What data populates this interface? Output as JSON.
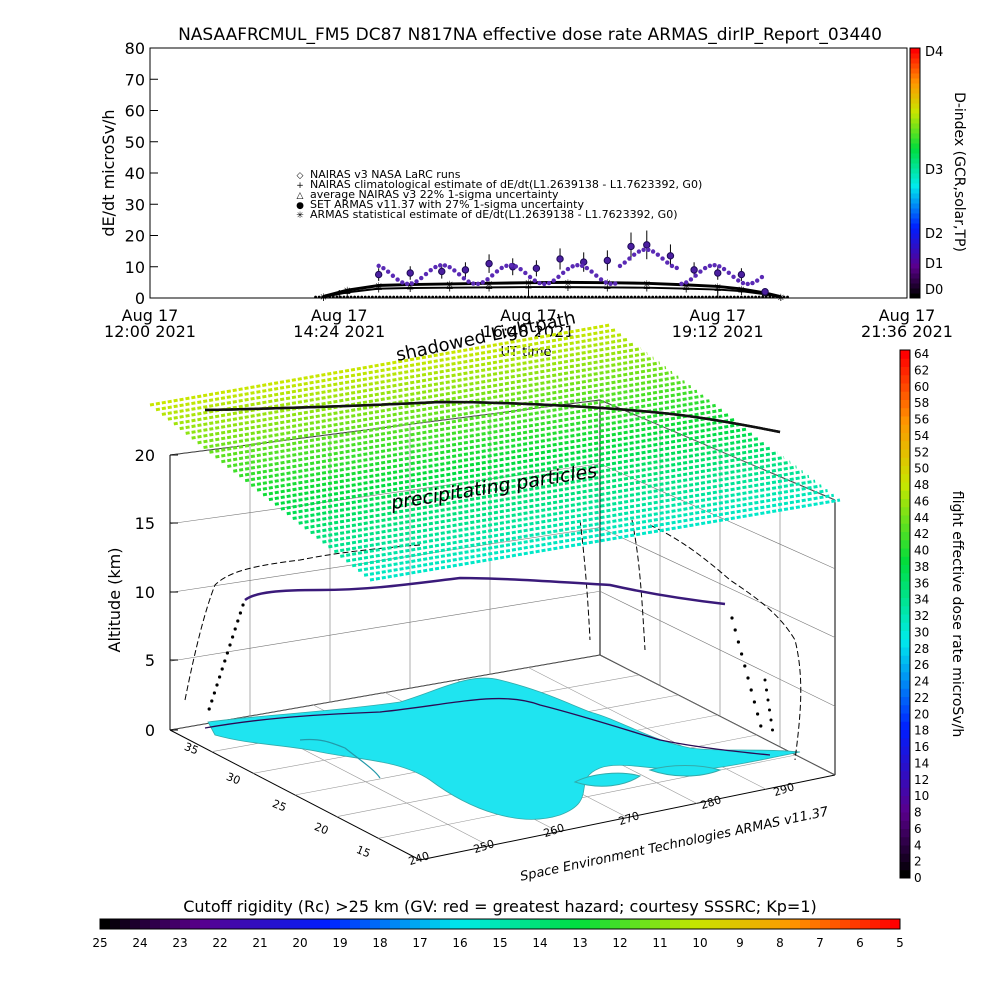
{
  "title": "NASAAFRCMUL_FM5 DC87 N817NA effective dose rate ARMAS_dirIP_Report_03440",
  "chart_data": [
    {
      "type": "scatter",
      "ylabel": "dE/dt microSv/h",
      "xlabel": "UT time",
      "ylim": [
        0,
        80
      ],
      "yticks": [
        "0",
        "10",
        "20",
        "30",
        "40",
        "50",
        "60",
        "70",
        "80"
      ],
      "xticks": [
        {
          "top": "Aug 17",
          "bottom": "12:00 2021"
        },
        {
          "top": "Aug 17",
          "bottom": "14:24 2021"
        },
        {
          "top": "Aug 17",
          "bottom": "16:48 2021"
        },
        {
          "top": "Aug 17",
          "bottom": "19:12 2021"
        },
        {
          "top": "Aug 17",
          "bottom": "21:36 2021"
        }
      ],
      "xlim_hours": [
        12.0,
        21.6
      ],
      "legend": [
        {
          "symbol": "◇",
          "label": "NAIRAS v3 NASA LaRC runs"
        },
        {
          "symbol": "+",
          "label": "NAIRAS climatological estimate of dE/dt(L1.2639138 - L1.7623392, G0)"
        },
        {
          "symbol": "△",
          "label": "average NAIRAS v3 22% 1-sigma uncertainty"
        },
        {
          "symbol": "●",
          "label": "SET ARMAS v11.37 with 27% 1-sigma uncertainty"
        },
        {
          "symbol": "✳",
          "label": "ARMAS statistical estimate of dE/dt(L1.2639138 - L1.7623392, G0)"
        }
      ],
      "right_axis": {
        "label": "D-index (GCR,solar,TP)",
        "ticks": [
          "D0",
          "D1",
          "D2",
          "D3",
          "D4"
        ]
      },
      "series": [
        {
          "name": "NAIRAS climatological estimate",
          "x_hours": [
            14.2,
            14.5,
            14.9,
            15.3,
            15.8,
            16.3,
            16.8,
            17.3,
            17.8,
            18.3,
            18.8,
            19.2,
            19.5,
            19.8,
            20.0
          ],
          "y": [
            0.3,
            1.8,
            3.0,
            3.2,
            3.3,
            3.4,
            3.5,
            3.5,
            3.4,
            3.3,
            3.0,
            2.7,
            2.2,
            1.2,
            0.3
          ]
        },
        {
          "name": "ARMAS statistical estimate",
          "x_hours": [
            14.2,
            14.5,
            14.9,
            15.3,
            15.8,
            16.3,
            16.8,
            17.3,
            17.8,
            18.3,
            18.8,
            19.2,
            19.5,
            19.8,
            20.0
          ],
          "y": [
            0.5,
            2.5,
            4.0,
            4.3,
            4.5,
            4.7,
            4.9,
            5.0,
            4.9,
            4.7,
            4.2,
            3.7,
            2.9,
            1.6,
            0.4
          ]
        },
        {
          "name": "SET ARMAS v11.37",
          "x_hours": [
            14.9,
            15.3,
            15.7,
            16.0,
            16.3,
            16.6,
            16.9,
            17.2,
            17.5,
            17.8,
            18.1,
            18.3,
            18.6,
            18.9,
            19.2,
            19.5,
            19.8
          ],
          "y": [
            7.5,
            8.0,
            8.5,
            9.0,
            11.0,
            10.0,
            9.5,
            12.5,
            11.5,
            12.0,
            16.5,
            17.0,
            13.5,
            9.0,
            8.0,
            7.5,
            2.0
          ]
        }
      ]
    },
    {
      "type": "scatter",
      "title": "",
      "zlabel": "Altitude (km)",
      "zticks": [
        "0",
        "5",
        "10",
        "15",
        "20"
      ],
      "lat_ticks": [
        "15",
        "20",
        "25",
        "30",
        "35"
      ],
      "lon_ticks": [
        "240",
        "250",
        "260",
        "270",
        "280",
        "290"
      ],
      "colorbar": {
        "label": "flight effective dose rate microSv/h",
        "range": [
          0,
          64
        ],
        "ticks": [
          "0",
          "2",
          "4",
          "6",
          "8",
          "10",
          "12",
          "14",
          "16",
          "18",
          "20",
          "22",
          "24",
          "26",
          "28",
          "30",
          "32",
          "34",
          "36",
          "38",
          "40",
          "42",
          "44",
          "46",
          "48",
          "50",
          "52",
          "54",
          "56",
          "58",
          "60",
          "62",
          "64"
        ]
      },
      "annotations": [
        "precipitating particles",
        "shadowed Lightpath"
      ],
      "credit": "Space Environment Technologies ARMAS v11.37"
    },
    {
      "type": "heatmap",
      "label": "Cutoff rigidity (Rc) >25 km (GV: red = greatest hazard; courtesy SSSRC; Kp=1)",
      "ticks": [
        "25",
        "24",
        "23",
        "22",
        "21",
        "20",
        "19",
        "18",
        "17",
        "16",
        "15",
        "14",
        "13",
        "12",
        "11",
        "10",
        "9",
        "8",
        "7",
        "6",
        "5"
      ]
    }
  ]
}
